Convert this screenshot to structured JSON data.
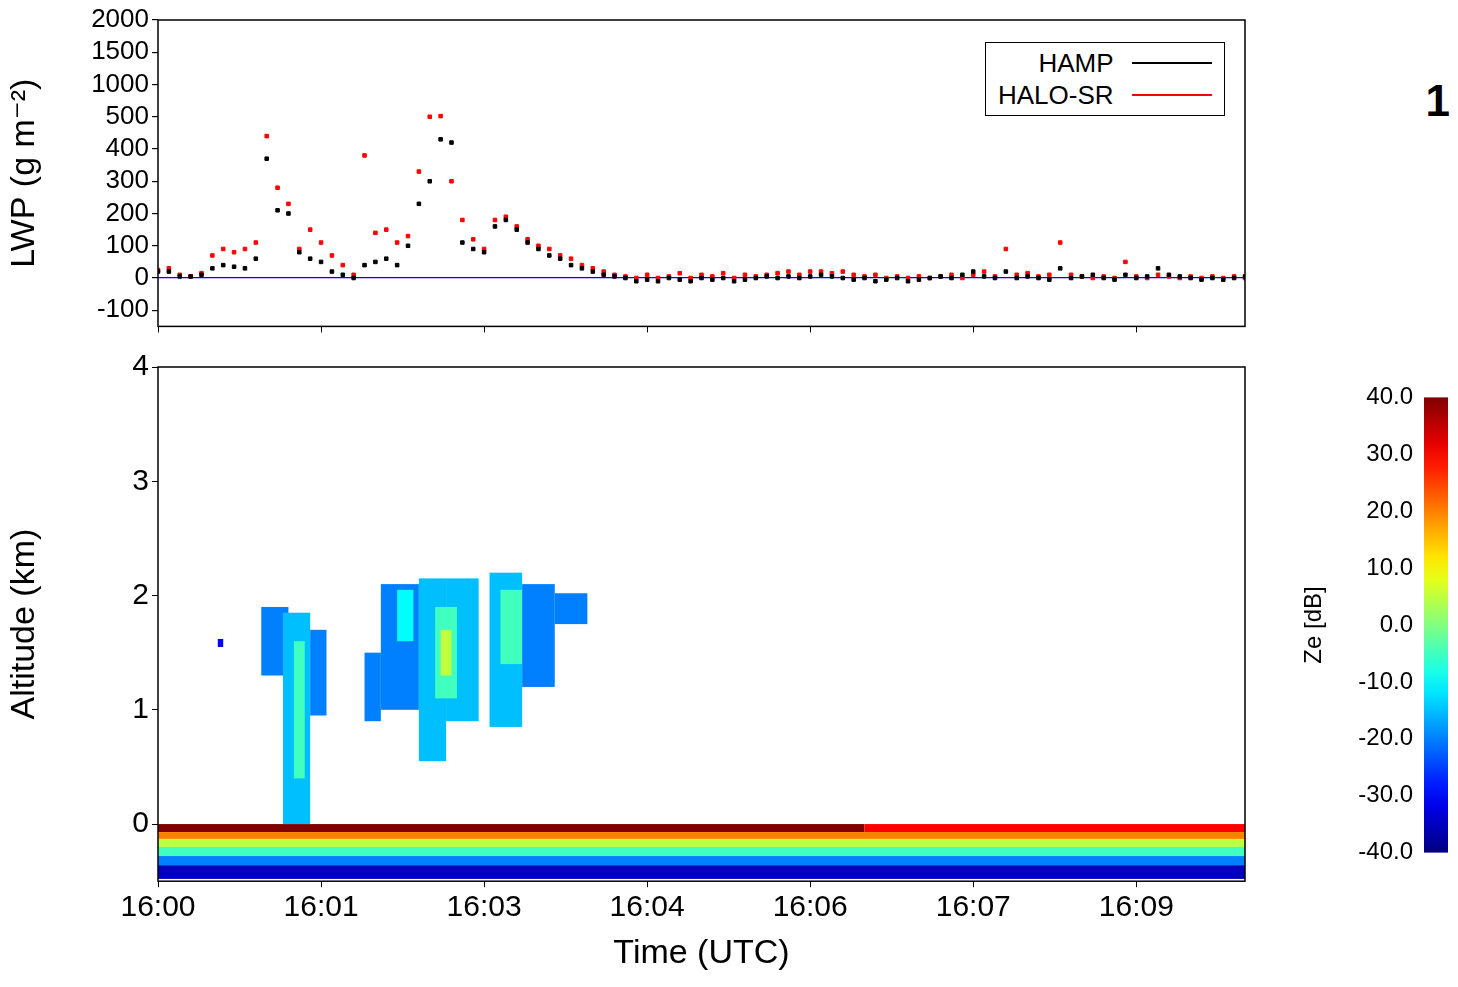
{
  "panel_label": "1",
  "chart_data": [
    {
      "type": "scatter",
      "ylabel": "LWP (g m⁻²)",
      "x": [
        0,
        0.1,
        0.2,
        0.3,
        0.4,
        0.5,
        0.6,
        0.7,
        0.8,
        0.9,
        1,
        1.1,
        1.2,
        1.3,
        1.4,
        1.5,
        1.6,
        1.7,
        1.8,
        1.9,
        2,
        2.1,
        2.2,
        2.3,
        2.4,
        2.5,
        2.6,
        2.7,
        2.8,
        2.9,
        3,
        3.1,
        3.2,
        3.3,
        3.4,
        3.5,
        3.6,
        3.7,
        3.8,
        3.9,
        4,
        4.1,
        4.2,
        4.3,
        4.4,
        4.5,
        4.6,
        4.7,
        4.8,
        4.9,
        5,
        5.1,
        5.2,
        5.3,
        5.4,
        5.5,
        5.6,
        5.7,
        5.8,
        5.9,
        6,
        6.1,
        6.2,
        6.3,
        6.4,
        6.5,
        6.6,
        6.7,
        6.8,
        6.9,
        7,
        7.1,
        7.2,
        7.3,
        7.4,
        7.5,
        7.6,
        7.7,
        7.8,
        7.9,
        8,
        8.1,
        8.2,
        8.3,
        8.4,
        8.5,
        8.6,
        8.7,
        8.8,
        8.9,
        9,
        9.1,
        9.2,
        9.3,
        9.4,
        9.5,
        9.6,
        9.7,
        9.8,
        9.9,
        10
      ],
      "xlim": [
        0,
        10
      ],
      "xticks": [
        {
          "value": 0,
          "label": "16:00"
        },
        {
          "value": 1.5,
          "label": "16:01"
        },
        {
          "value": 3,
          "label": "16:03"
        },
        {
          "value": 4.5,
          "label": "16:04"
        },
        {
          "value": 6,
          "label": "16:06"
        },
        {
          "value": 7.5,
          "label": "16:07"
        },
        {
          "value": 9,
          "label": "16:09"
        }
      ],
      "ylim": [
        -150,
        2000
      ],
      "yticks": [
        -100,
        0,
        100,
        200,
        300,
        400,
        500,
        1000,
        1500,
        2000
      ],
      "tick_labels": "y",
      "grid": false,
      "legend": "upper right",
      "marker": "square",
      "series": [
        {
          "name": "HAMP",
          "color": "#000000",
          "values": [
            20,
            20,
            5,
            5,
            10,
            30,
            40,
            35,
            30,
            60,
            370,
            210,
            200,
            80,
            60,
            50,
            20,
            10,
            0,
            40,
            50,
            60,
            40,
            100,
            230,
            300,
            430,
            420,
            110,
            90,
            80,
            160,
            180,
            150,
            110,
            90,
            70,
            60,
            40,
            30,
            20,
            10,
            5,
            0,
            -10,
            -5,
            -10,
            0,
            -5,
            -10,
            0,
            -5,
            0,
            -10,
            -5,
            0,
            5,
            0,
            5,
            0,
            5,
            10,
            5,
            0,
            -5,
            0,
            -10,
            -5,
            0,
            -10,
            -5,
            0,
            5,
            0,
            10,
            20,
            5,
            0,
            20,
            0,
            5,
            0,
            -5,
            30,
            0,
            5,
            10,
            0,
            -5,
            10,
            0,
            5,
            30,
            10,
            5,
            0,
            -5,
            0,
            -5,
            0,
            5
          ]
        },
        {
          "name": "HALO-SR",
          "color": "#ff0000",
          "values": [
            25,
            30,
            10,
            5,
            15,
            70,
            90,
            80,
            90,
            110,
            440,
            280,
            230,
            90,
            150,
            110,
            70,
            40,
            10,
            380,
            140,
            150,
            110,
            130,
            330,
            500,
            510,
            300,
            180,
            120,
            90,
            180,
            190,
            160,
            120,
            100,
            90,
            70,
            60,
            40,
            30,
            20,
            10,
            5,
            0,
            10,
            0,
            5,
            15,
            0,
            10,
            5,
            15,
            0,
            10,
            5,
            10,
            15,
            20,
            10,
            20,
            20,
            15,
            20,
            10,
            5,
            10,
            0,
            5,
            0,
            5,
            0,
            5,
            10,
            0,
            10,
            20,
            5,
            90,
            10,
            15,
            5,
            10,
            110,
            10,
            5,
            0,
            5,
            0,
            50,
            5,
            0,
            10,
            5,
            0,
            5,
            0,
            5,
            0,
            5,
            0
          ]
        }
      ]
    },
    {
      "type": "heatmap",
      "xlabel": "Time (UTC)",
      "ylabel": "Altitude (km)",
      "xlim": [
        0,
        10
      ],
      "xticks": [
        {
          "value": 0,
          "label": "16:00"
        },
        {
          "value": 1.5,
          "label": "16:01"
        },
        {
          "value": 3,
          "label": "16:03"
        },
        {
          "value": 4.5,
          "label": "16:04"
        },
        {
          "value": 6,
          "label": "16:06"
        },
        {
          "value": 7.5,
          "label": "16:07"
        },
        {
          "value": 9,
          "label": "16:09"
        }
      ],
      "ylim": [
        -0.5,
        4
      ],
      "yticks": [
        0,
        1,
        2,
        3,
        4
      ],
      "grid": false,
      "colorbar": {
        "label": "Ze [dB]",
        "range": [
          -40,
          40
        ],
        "ticks": [
          {
            "value": -40,
            "label": "-40.0"
          },
          {
            "value": -30,
            "label": "-30.0"
          },
          {
            "value": -20,
            "label": "-20.0"
          },
          {
            "value": -10,
            "label": "-10.0"
          },
          {
            "value": 0,
            "label": "0.0"
          },
          {
            "value": 10,
            "label": "10.0"
          },
          {
            "value": 20,
            "label": "20.0"
          },
          {
            "value": 30,
            "label": "30.0"
          },
          {
            "value": 40,
            "label": "40.0"
          }
        ]
      },
      "cells": [
        {
          "t": [
            0,
            6.5
          ],
          "alt": [
            -0.07,
            0
          ],
          "ze": 40
        },
        {
          "t": [
            6.5,
            10
          ],
          "alt": [
            -0.07,
            0
          ],
          "ze": 30
        },
        {
          "t": [
            0,
            10
          ],
          "alt": [
            -0.13,
            -0.07
          ],
          "ze": 20
        },
        {
          "t": [
            0,
            10
          ],
          "alt": [
            -0.2,
            -0.13
          ],
          "ze": 5
        },
        {
          "t": [
            0,
            10
          ],
          "alt": [
            -0.28,
            -0.2
          ],
          "ze": -5
        },
        {
          "t": [
            0,
            10
          ],
          "alt": [
            -0.36,
            -0.28
          ],
          "ze": -20
        },
        {
          "t": [
            0,
            10
          ],
          "alt": [
            -0.48,
            -0.36
          ],
          "ze": -35
        },
        {
          "t": [
            0.55,
            0.6
          ],
          "alt": [
            1.55,
            1.62
          ],
          "ze": -30
        },
        {
          "t": [
            0.95,
            1.2
          ],
          "alt": [
            1.3,
            1.9
          ],
          "ze": -20
        },
        {
          "t": [
            1.15,
            1.4
          ],
          "alt": [
            0,
            1.85
          ],
          "ze": -15
        },
        {
          "t": [
            1.25,
            1.35
          ],
          "alt": [
            0.4,
            1.6
          ],
          "ze": -5
        },
        {
          "t": [
            1.4,
            1.55
          ],
          "alt": [
            0.95,
            1.7
          ],
          "ze": -20
        },
        {
          "t": [
            1.9,
            2.05
          ],
          "alt": [
            0.9,
            1.5
          ],
          "ze": -20
        },
        {
          "t": [
            2.05,
            2.4
          ],
          "alt": [
            1,
            2.1
          ],
          "ze": -20
        },
        {
          "t": [
            2.2,
            2.35
          ],
          "alt": [
            1.6,
            2.05
          ],
          "ze": -10
        },
        {
          "t": [
            2.4,
            2.65
          ],
          "alt": [
            0.55,
            2.15
          ],
          "ze": -15
        },
        {
          "t": [
            2.65,
            2.95
          ],
          "alt": [
            0.9,
            2.15
          ],
          "ze": -15
        },
        {
          "t": [
            2.55,
            2.75
          ],
          "alt": [
            1.1,
            1.9
          ],
          "ze": -5
        },
        {
          "t": [
            2.6,
            2.7
          ],
          "alt": [
            1.3,
            1.7
          ],
          "ze": 5
        },
        {
          "t": [
            3.05,
            3.35
          ],
          "alt": [
            0.85,
            2.2
          ],
          "ze": -15
        },
        {
          "t": [
            3.15,
            3.35
          ],
          "alt": [
            1.4,
            2.05
          ],
          "ze": -5
        },
        {
          "t": [
            3.35,
            3.65
          ],
          "alt": [
            1.2,
            2.1
          ],
          "ze": -20
        },
        {
          "t": [
            3.65,
            3.95
          ],
          "alt": [
            1.75,
            2.02
          ],
          "ze": -20
        }
      ]
    }
  ]
}
